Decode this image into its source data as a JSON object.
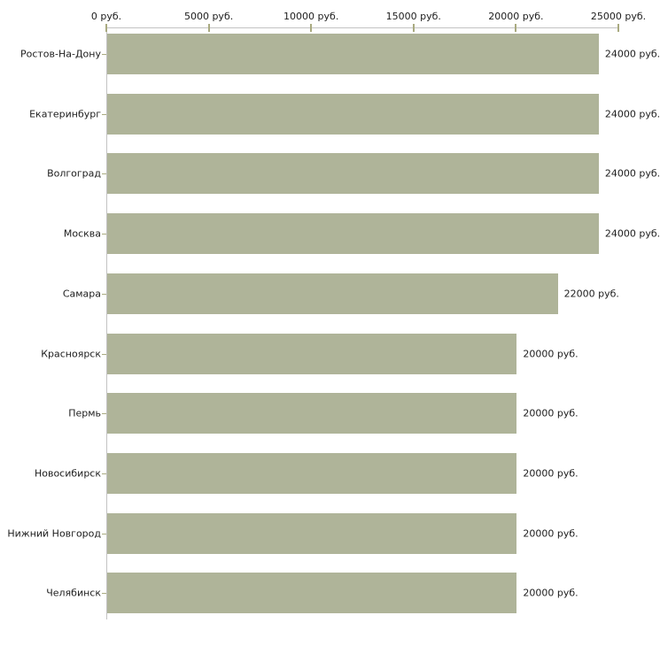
{
  "chart_data": {
    "type": "bar",
    "orientation": "horizontal",
    "title": "",
    "xlabel": "",
    "ylabel": "",
    "xlim": [
      0,
      25000
    ],
    "x_ticks": [
      0,
      5000,
      10000,
      15000,
      20000,
      25000
    ],
    "x_tick_labels": [
      "0 руб.",
      "5000 руб.",
      "10000 руб.",
      "15000 руб.",
      "20000 руб.",
      "25000 руб."
    ],
    "categories": [
      "Ростов-На-Дону",
      "Екатеринбург",
      "Волгоград",
      "Москва",
      "Самара",
      "Красноярск",
      "Пермь",
      "Новосибирск",
      "Нижний Новгород",
      "Челябинск"
    ],
    "values": [
      24000,
      24000,
      24000,
      24000,
      22000,
      20000,
      20000,
      20000,
      20000,
      20000
    ],
    "value_labels": [
      "24000 руб.",
      "24000 руб.",
      "24000 руб.",
      "24000 руб.",
      "22000 руб.",
      "20000 руб.",
      "20000 руб.",
      "20000 руб.",
      "20000 руб.",
      "20000 руб."
    ],
    "unit": "руб.",
    "grid": false,
    "legend": false,
    "colors": {
      "bar": "#afb499",
      "axis_line": "#c3c3c3",
      "tick": "#a9aa80",
      "text": "#202020",
      "background": "#ffffff"
    }
  }
}
